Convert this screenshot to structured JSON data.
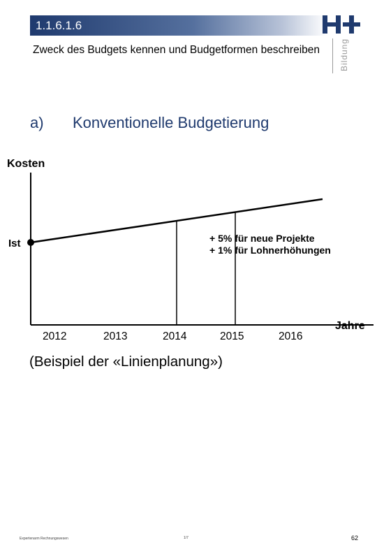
{
  "header": {
    "section_number": "1.1.6.1.6",
    "subtitle": "Zweck des Budgets kennen und Budgetformen beschreiben",
    "logo": {
      "icon": "hplus-logo-icon",
      "tag": "Bildung",
      "color": "#1f3a6e"
    },
    "bar_color": "#1f3a6e"
  },
  "heading": {
    "marker": "a)",
    "text": "Konventionelle Budgetierung",
    "color": "#1f3a6e"
  },
  "diagram": {
    "y_axis_label": "Kosten",
    "x_axis_label": "Jahre",
    "start_label": "Ist",
    "years": [
      "2012",
      "2013",
      "2014",
      "2015",
      "2016"
    ],
    "annotations": [
      "+ 5% für neue Projekte",
      "+ 1% für Lohnerhöhungen"
    ]
  },
  "caption": "(Beispiel der «Linienplanung»)",
  "footer": {
    "left": "Expertenarm Rechnungswesen",
    "mid": "1/7",
    "page_number": "62"
  }
}
